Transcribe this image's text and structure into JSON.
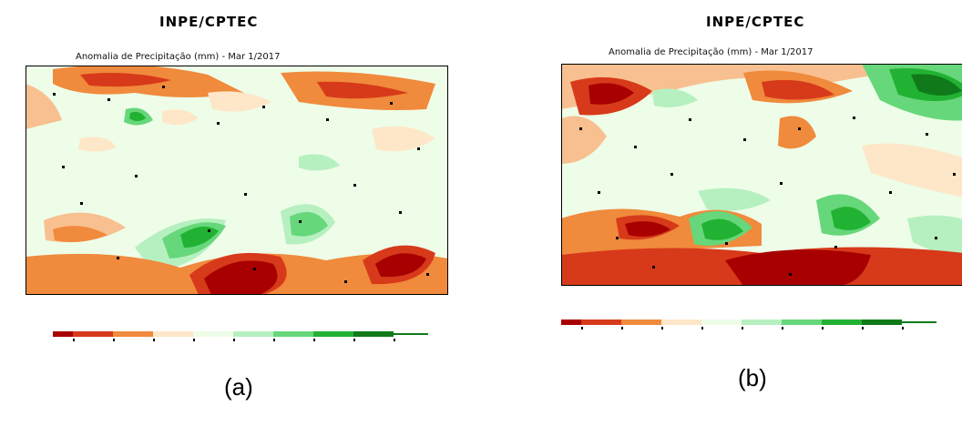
{
  "panels": [
    {
      "id": "a",
      "header": "INPE/CPTEC",
      "subtitle": "Anomalia de Precipitação (mm) - Mar 1/2017",
      "label": "(a)"
    },
    {
      "id": "b",
      "header": "INPE/CPTEC",
      "subtitle": "Anomalia de Precipitação (mm) - Mar 1/2017",
      "label": "(b)"
    }
  ],
  "colors": {
    "dark_red": "#a80000",
    "red": "#d73a1a",
    "orange": "#f08a3c",
    "peach": "#f8c090",
    "cream": "#fde7c8",
    "pale_green": "#eefde8",
    "light_green": "#b6f0c0",
    "mid_green": "#66d77a",
    "green": "#22b233",
    "dark_green": "#107a1a"
  }
}
